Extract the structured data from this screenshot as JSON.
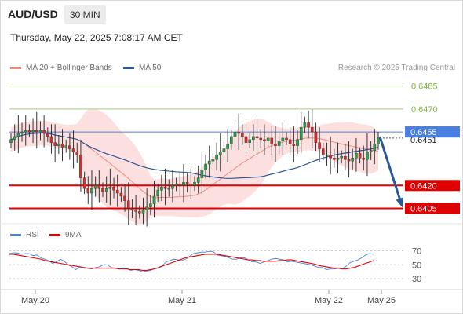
{
  "header": {
    "symbol": "AUD/USD",
    "timeframe": "30 MIN",
    "datetime": "Thursday, May 22, 2025 7:08:17 AM CET"
  },
  "legend": {
    "ma20": {
      "label": "MA 20 + Bollinger Bands",
      "color": "#f28b82"
    },
    "ma50": {
      "label": "MA 50",
      "color": "#2b5797"
    },
    "credit": "Research © 2025 Trading Central"
  },
  "rsi_legend": {
    "rsi": {
      "label": "RSI",
      "color": "#4a7fd6"
    },
    "ma9": {
      "label": "9MA",
      "color": "#e00000"
    }
  },
  "chart_data": [
    {
      "type": "candlestick",
      "title": "AUD/USD",
      "timeframe": "30 MIN",
      "ylim": [
        0.6395,
        0.6492
      ],
      "x_ticks": [
        "May 20",
        "May 21",
        "May 22",
        "May 25"
      ],
      "levels": [
        {
          "label": "0.6485",
          "value": 0.6485,
          "kind": "resistance",
          "color": "#a8cf7a"
        },
        {
          "label": "0.6470",
          "value": 0.647,
          "kind": "resistance",
          "color": "#a8cf7a"
        },
        {
          "label": "0.6455",
          "value": 0.6455,
          "kind": "pivot",
          "color": "#4a7fe0"
        },
        {
          "label": "0.6420",
          "value": 0.642,
          "kind": "support",
          "color": "#e00000"
        },
        {
          "label": "0.6405",
          "value": 0.6405,
          "kind": "support",
          "color": "#e00000"
        }
      ],
      "last_price_label": "0.6451",
      "last_price": 0.6451,
      "projection": {
        "from": 0.6452,
        "to": 0.6405
      },
      "closes": [
        0.645,
        0.6452,
        0.6454,
        0.6455,
        0.6456,
        0.6455,
        0.6456,
        0.6455,
        0.6456,
        0.6454,
        0.6452,
        0.6448,
        0.6446,
        0.6447,
        0.6445,
        0.6446,
        0.6444,
        0.6442,
        0.644,
        0.6425,
        0.6418,
        0.6415,
        0.6418,
        0.642,
        0.6418,
        0.6416,
        0.6418,
        0.6419,
        0.6417,
        0.6415,
        0.6413,
        0.641,
        0.6405,
        0.6404,
        0.6403,
        0.6402,
        0.6404,
        0.6406,
        0.6408,
        0.6413,
        0.6417,
        0.6419,
        0.6418,
        0.6418,
        0.642,
        0.6421,
        0.642,
        0.6422,
        0.6421,
        0.642,
        0.6422,
        0.6425,
        0.643,
        0.6434,
        0.6436,
        0.6437,
        0.644,
        0.6442,
        0.6444,
        0.6447,
        0.6452,
        0.6455,
        0.6454,
        0.6452,
        0.6448,
        0.645,
        0.6452,
        0.6451,
        0.645,
        0.6449,
        0.6451,
        0.6447,
        0.6446,
        0.6449,
        0.6451,
        0.645,
        0.6447,
        0.6446,
        0.645,
        0.6458,
        0.6461,
        0.6458,
        0.6455,
        0.6448,
        0.6444,
        0.644,
        0.644,
        0.6438,
        0.6437,
        0.6438,
        0.6439,
        0.6437,
        0.6436,
        0.6438,
        0.6441,
        0.6438,
        0.6437,
        0.6442,
        0.6443,
        0.6447,
        0.6451
      ]
    },
    {
      "type": "line",
      "title": "RSI",
      "ylim": [
        20,
        75
      ],
      "y_ticks": [
        70,
        50,
        30
      ],
      "series": [
        {
          "name": "RSI",
          "values": [
            66,
            67,
            67,
            65,
            66,
            66,
            63,
            64,
            60,
            58,
            56,
            52,
            54,
            58,
            55,
            50,
            47,
            43,
            47,
            45,
            45,
            44,
            46,
            47,
            50,
            50,
            46,
            45,
            44,
            45,
            44,
            42,
            43,
            42,
            40,
            41,
            42,
            44,
            45,
            48,
            54,
            56,
            58,
            57,
            56,
            58,
            62,
            66,
            67,
            68,
            68,
            69,
            69,
            64,
            63,
            62,
            60,
            58,
            58,
            60,
            60,
            57,
            54,
            54,
            52,
            54,
            56,
            58,
            59,
            58,
            57,
            54,
            55,
            54,
            53,
            52,
            51,
            50,
            48,
            46,
            46,
            43,
            44,
            44,
            45,
            44,
            48,
            53,
            55,
            57,
            60,
            64,
            66,
            65
          ]
        },
        {
          "name": "9MA",
          "values": [
            65,
            65,
            64,
            63,
            62,
            61,
            60,
            59,
            58,
            56,
            55,
            54,
            53,
            52,
            51,
            50,
            49,
            48,
            47,
            46,
            45,
            45,
            45,
            45,
            45,
            45,
            45,
            45,
            44,
            44,
            44,
            43,
            43,
            43,
            42,
            42,
            43,
            44,
            46,
            48,
            50,
            52,
            54,
            56,
            58,
            60,
            61,
            62,
            63,
            64,
            65,
            65,
            65,
            65,
            64,
            63,
            62,
            61,
            60,
            59,
            58,
            57,
            57,
            56,
            56,
            55,
            55,
            55,
            55,
            56,
            56,
            57,
            57,
            56,
            55,
            54,
            53,
            52,
            51,
            49,
            48,
            47,
            46,
            45,
            45,
            44,
            44,
            45,
            46,
            48,
            50,
            52,
            54,
            56
          ]
        }
      ]
    }
  ]
}
